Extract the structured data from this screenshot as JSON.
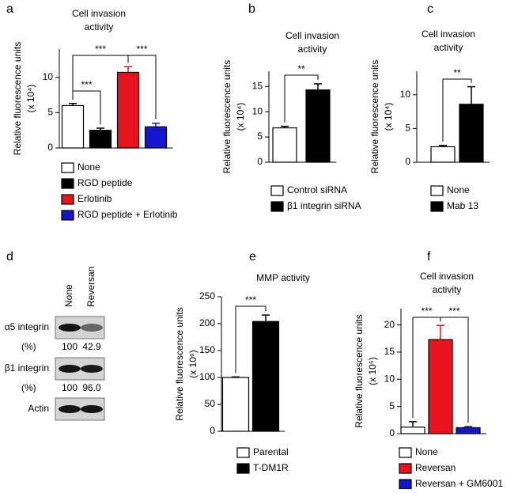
{
  "chart_data": [
    {
      "type": "bar",
      "panel": "a",
      "title": [
        "Cell invasion",
        "activity"
      ],
      "ylabel": [
        "Relative fluorescence units",
        "(x 10⁴)"
      ],
      "ylim": [
        0,
        14
      ],
      "yticks": [
        0,
        5,
        10
      ],
      "series": [
        {
          "name": "None",
          "color": "#ffffff",
          "values": [
            6.0
          ],
          "errors": [
            0.3
          ]
        },
        {
          "name": "RGD peptide",
          "color": "#000000",
          "values": [
            2.5
          ],
          "errors": [
            0.3
          ]
        },
        {
          "name": "Erlotinib",
          "color": "#e8141b",
          "values": [
            10.7
          ],
          "errors": [
            0.8
          ]
        },
        {
          "name": "RGD peptide + Erlotinib",
          "color": "#1515d0",
          "values": [
            3.0
          ],
          "errors": [
            0.5
          ]
        }
      ],
      "brackets": [
        {
          "from": 0,
          "to": 1,
          "label": "***"
        },
        {
          "from": 0,
          "to": 2,
          "label": "***"
        },
        {
          "from": 2,
          "to": 3,
          "label": "***"
        }
      ]
    },
    {
      "type": "bar",
      "panel": "b",
      "title": [
        "Cell invasion",
        "activity"
      ],
      "ylabel": [
        "Relative fluorescence units",
        "(x 10⁴)"
      ],
      "ylim": [
        0,
        18
      ],
      "yticks": [
        0,
        5,
        10,
        15
      ],
      "series": [
        {
          "name": "Control siRNA",
          "color": "#ffffff",
          "values": [
            6.8
          ],
          "errors": [
            0.3
          ]
        },
        {
          "name": "β1 integrin siRNA",
          "color": "#000000",
          "values": [
            14.3
          ],
          "errors": [
            1.2
          ]
        }
      ],
      "brackets": [
        {
          "from": 0,
          "to": 1,
          "label": "**"
        }
      ]
    },
    {
      "type": "bar",
      "panel": "c",
      "title": [
        "Cell invasion",
        "activity"
      ],
      "ylabel": [
        "Relative fluorescence units",
        "(x 10⁴)"
      ],
      "ylim": [
        0,
        13.5
      ],
      "yticks": [
        0,
        5,
        10
      ],
      "series": [
        {
          "name": "None",
          "color": "#ffffff",
          "values": [
            2.3
          ],
          "errors": [
            0.2
          ]
        },
        {
          "name": "Mab 13",
          "color": "#000000",
          "values": [
            8.6
          ],
          "errors": [
            2.6
          ]
        }
      ],
      "brackets": [
        {
          "from": 0,
          "to": 1,
          "label": "**"
        }
      ]
    },
    {
      "type": "blot",
      "panel": "d",
      "lanes": [
        "None",
        "Reversan"
      ],
      "percent_label": "(%)",
      "rows": [
        {
          "name": "α5 integrin",
          "values": [
            100,
            42.9
          ],
          "value_labels": [
            "100",
            "42.9"
          ]
        },
        {
          "name": "β1 integrin",
          "values": [
            100,
            96
          ],
          "value_labels": [
            "100",
            "96.0"
          ]
        },
        {
          "name": "Actin"
        }
      ]
    },
    {
      "type": "bar",
      "panel": "e",
      "title": [
        "MMP activity"
      ],
      "ylabel": [
        "Relative fluorescence units",
        "(x 10⁶)"
      ],
      "ylim": [
        0,
        250
      ],
      "yticks": [
        0,
        50,
        100,
        150,
        200,
        250
      ],
      "series": [
        {
          "name": "Parental",
          "color": "#ffffff",
          "values": [
            100
          ],
          "errors": [
            1
          ]
        },
        {
          "name": "T-DM1R",
          "color": "#000000",
          "values": [
            204
          ],
          "errors": [
            12
          ]
        }
      ],
      "brackets": [
        {
          "from": 0,
          "to": 1,
          "label": "***"
        }
      ]
    },
    {
      "type": "bar",
      "panel": "f",
      "title": [
        "Cell invasion",
        "activity"
      ],
      "ylabel": [
        "Relative fluorescence units",
        "(x 10⁵)"
      ],
      "ylim": [
        0,
        23
      ],
      "yticks": [
        0,
        5,
        10,
        15,
        20
      ],
      "series": [
        {
          "name": "None",
          "color": "#ffffff",
          "values": [
            1.2
          ],
          "errors": [
            1.0
          ]
        },
        {
          "name": "Reversan",
          "color": "#e8141b",
          "values": [
            17.3
          ],
          "errors": [
            2.6
          ]
        },
        {
          "name": "Reversan + GM6001",
          "color": "#1515d0",
          "values": [
            1.1
          ],
          "errors": [
            0.2
          ]
        }
      ],
      "brackets": [
        {
          "from": 0,
          "to": 1,
          "label": "***"
        },
        {
          "from": 1,
          "to": 2,
          "label": "***"
        }
      ]
    }
  ]
}
